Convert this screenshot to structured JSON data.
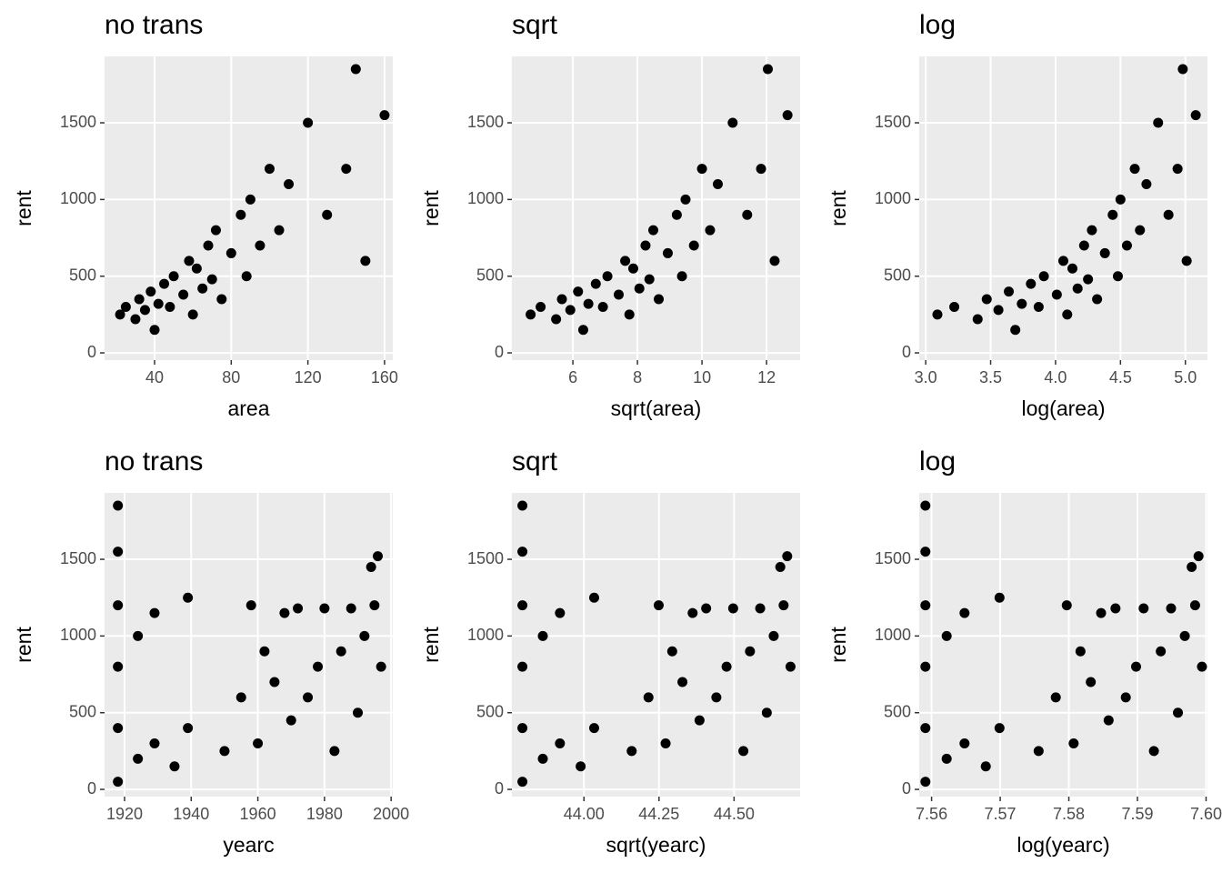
{
  "chart_data": [
    {
      "type": "scatter",
      "title": "no trans",
      "x_label": "area",
      "y_label": "rent",
      "color": "#000000",
      "grid": true,
      "x": [
        22,
        25,
        30,
        32,
        35,
        38,
        40,
        42,
        45,
        48,
        50,
        55,
        58,
        60,
        62,
        65,
        68,
        70,
        72,
        75,
        80,
        85,
        88,
        90,
        95,
        100,
        105,
        110,
        120,
        130,
        140,
        145,
        150,
        160
      ],
      "y": [
        250,
        300,
        220,
        350,
        280,
        400,
        150,
        320,
        450,
        300,
        500,
        380,
        600,
        250,
        550,
        420,
        700,
        480,
        800,
        350,
        650,
        900,
        500,
        1000,
        700,
        1200,
        800,
        1100,
        1500,
        900,
        1200,
        1850,
        600,
        1550
      ],
      "xlim": [
        13.9,
        164.3
      ],
      "ylim": [
        -47,
        1933
      ],
      "xticks": [
        40,
        80,
        120,
        160
      ],
      "yticks": [
        0,
        500,
        1000,
        1500
      ]
    },
    {
      "type": "scatter",
      "title": "sqrt",
      "x_label": "sqrt(area)",
      "y_label": "rent",
      "color": "#000000",
      "grid": true,
      "x": [
        4.69,
        5.0,
        5.48,
        5.66,
        5.92,
        6.16,
        6.32,
        6.48,
        6.71,
        6.93,
        7.07,
        7.42,
        7.62,
        7.75,
        7.87,
        8.06,
        8.25,
        8.37,
        8.49,
        8.66,
        8.94,
        9.22,
        9.38,
        9.49,
        9.75,
        10.0,
        10.25,
        10.49,
        10.95,
        11.4,
        11.83,
        12.04,
        12.25,
        12.65
      ],
      "y": [
        250,
        300,
        220,
        350,
        280,
        400,
        150,
        320,
        450,
        300,
        500,
        380,
        600,
        250,
        550,
        420,
        700,
        480,
        800,
        350,
        650,
        900,
        500,
        1000,
        700,
        1200,
        800,
        1100,
        1500,
        900,
        1200,
        1850,
        600,
        1550
      ],
      "xlim": [
        4.11,
        13.04
      ],
      "ylim": [
        -47,
        1933
      ],
      "xticks": [
        6,
        8,
        10,
        12
      ],
      "yticks": [
        0,
        500,
        1000,
        1500
      ]
    },
    {
      "type": "scatter",
      "title": "log",
      "x_label": "log(area)",
      "y_label": "rent",
      "color": "#000000",
      "grid": true,
      "x": [
        3.09,
        3.22,
        3.4,
        3.47,
        3.56,
        3.64,
        3.69,
        3.74,
        3.81,
        3.87,
        3.91,
        4.01,
        4.06,
        4.09,
        4.13,
        4.17,
        4.22,
        4.25,
        4.28,
        4.32,
        4.38,
        4.44,
        4.48,
        4.5,
        4.55,
        4.61,
        4.65,
        4.7,
        4.79,
        4.87,
        4.94,
        4.98,
        5.01,
        5.08
      ],
      "y": [
        250,
        300,
        220,
        350,
        280,
        400,
        150,
        320,
        450,
        300,
        500,
        380,
        600,
        250,
        550,
        420,
        700,
        480,
        800,
        350,
        650,
        900,
        500,
        1000,
        700,
        1200,
        800,
        1100,
        1500,
        900,
        1200,
        1850,
        600,
        1550
      ],
      "xlim": [
        2.95,
        5.17
      ],
      "ylim": [
        -47,
        1933
      ],
      "xticks": [
        {
          "value": 3,
          "label": "3.0"
        },
        3.5,
        {
          "value": 4,
          "label": "4.0"
        },
        4.5,
        {
          "value": 5,
          "label": "5.0"
        }
      ],
      "yticks": [
        0,
        500,
        1000,
        1500
      ]
    },
    {
      "type": "scatter",
      "title": "no trans",
      "x_label": "yearc",
      "y_label": "rent",
      "color": "#000000",
      "grid": true,
      "x": [
        1918,
        1918,
        1918,
        1918,
        1918,
        1918,
        1924,
        1924,
        1929,
        1929,
        1935,
        1939,
        1939,
        1950,
        1955,
        1958,
        1960,
        1962,
        1965,
        1968,
        1970,
        1972,
        1975,
        1978,
        1980,
        1983,
        1985,
        1988,
        1990,
        1992,
        1994,
        1995,
        1996,
        1997
      ],
      "y": [
        50,
        400,
        800,
        1200,
        1550,
        1850,
        200,
        1000,
        300,
        1150,
        150,
        400,
        1250,
        250,
        600,
        1200,
        300,
        900,
        700,
        1150,
        450,
        1180,
        600,
        800,
        1180,
        250,
        900,
        1180,
        500,
        1000,
        1450,
        1200,
        1520,
        800
      ],
      "xlim": [
        1914,
        2000.5
      ],
      "ylim": [
        -47,
        1933
      ],
      "xticks": [
        1920,
        1940,
        1960,
        1980,
        2000
      ],
      "yticks": [
        0,
        500,
        1000,
        1500
      ]
    },
    {
      "type": "scatter",
      "title": "sqrt",
      "x_label": "sqrt(yearc)",
      "y_label": "rent",
      "color": "#000000",
      "grid": true,
      "x": [
        43.795,
        43.795,
        43.795,
        43.795,
        43.795,
        43.795,
        43.863,
        43.863,
        43.92,
        43.92,
        43.989,
        44.034,
        44.034,
        44.159,
        44.215,
        44.249,
        44.272,
        44.294,
        44.328,
        44.362,
        44.385,
        44.407,
        44.441,
        44.475,
        44.497,
        44.531,
        44.553,
        44.587,
        44.609,
        44.632,
        44.654,
        44.665,
        44.677,
        44.688
      ],
      "y": [
        50,
        400,
        800,
        1200,
        1550,
        1850,
        200,
        1000,
        300,
        1150,
        150,
        400,
        1250,
        250,
        600,
        1200,
        300,
        900,
        700,
        1150,
        450,
        1180,
        600,
        800,
        1180,
        250,
        900,
        1180,
        500,
        1000,
        1450,
        1200,
        1520,
        800
      ],
      "xlim": [
        43.76,
        44.72
      ],
      "ylim": [
        -47,
        1933
      ],
      "xticks": [
        {
          "value": 44,
          "label": "44.00"
        },
        44.25,
        {
          "value": 44.5,
          "label": "44.50"
        }
      ],
      "yticks": [
        0,
        500,
        1000,
        1500
      ]
    },
    {
      "type": "scatter",
      "title": "log",
      "x_label": "log(yearc)",
      "y_label": "rent",
      "color": "#000000",
      "grid": true,
      "x": [
        7.5591,
        7.5591,
        7.5591,
        7.5591,
        7.5591,
        7.5591,
        7.5622,
        7.5622,
        7.5648,
        7.5648,
        7.5679,
        7.5699,
        7.5699,
        7.5756,
        7.5781,
        7.5797,
        7.5807,
        7.5817,
        7.5832,
        7.5847,
        7.5858,
        7.5868,
        7.5883,
        7.5898,
        7.5909,
        7.5924,
        7.5934,
        7.5949,
        7.5959,
        7.5969,
        7.5979,
        7.5984,
        7.5989,
        7.5994
      ],
      "y": [
        50,
        400,
        800,
        1200,
        1550,
        1850,
        200,
        1000,
        300,
        1150,
        150,
        400,
        1250,
        250,
        600,
        1200,
        300,
        900,
        700,
        1150,
        450,
        1180,
        600,
        800,
        1180,
        250,
        900,
        1180,
        500,
        1000,
        1450,
        1200,
        1520,
        800
      ],
      "xlim": [
        7.5582,
        7.6002
      ],
      "ylim": [
        -47,
        1933
      ],
      "xticks": [
        7.56,
        7.57,
        7.58,
        7.59,
        {
          "value": 7.6,
          "label": "7.60"
        }
      ],
      "yticks": [
        0,
        500,
        1000,
        1500
      ]
    }
  ]
}
